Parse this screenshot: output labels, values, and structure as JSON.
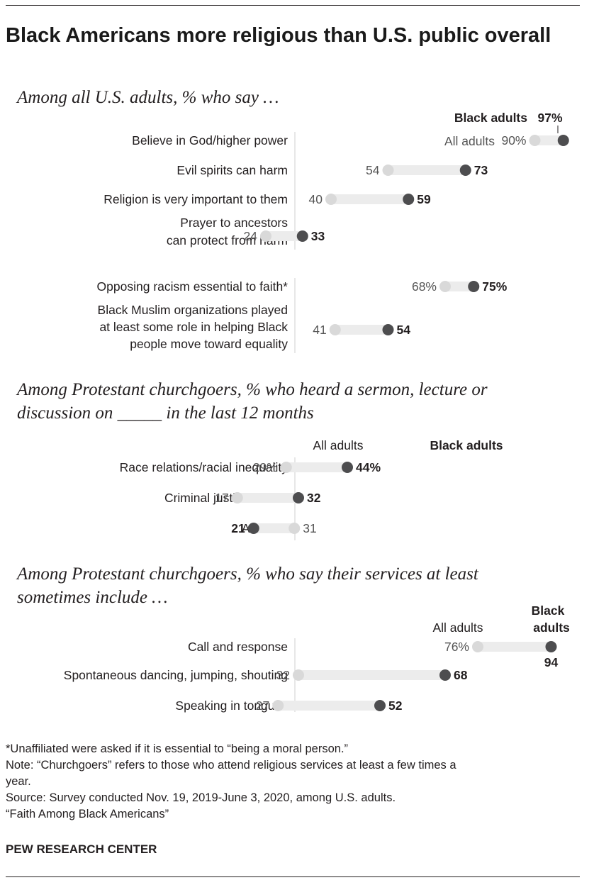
{
  "title": "Black Americans more religious than U.S. public overall",
  "colors": {
    "black_dot": "#4d4d4f",
    "all_dot": "#d9d9d9",
    "bar": "#ececec",
    "text": "#231f20",
    "muted": "#555555"
  },
  "footnotes": {
    "note1": "*Unaffiliated were asked if it is essential to “being a moral person.”",
    "note2a": "Note: “Churchgoers” refers to those who attend religious services at least a few times a",
    "note2b": "year.",
    "source": "Source: Survey conducted Nov. 19, 2019-June 3, 2020, among U.S. adults.",
    "report": "“Faith Among Black Americans”"
  },
  "brand": "PEW RESEARCH CENTER",
  "chart_data": [
    {
      "type": "dot",
      "subtitle": "Among all U.S. adults, % who say …",
      "legend": {
        "black": "Black adults",
        "all": "All adults"
      },
      "xlim": [
        0,
        100
      ],
      "rows": [
        {
          "label": [
            "Believe in God/higher power"
          ],
          "all": 90,
          "black": 97,
          "all_text": "90%",
          "black_text": "97%"
        },
        {
          "label": [
            "Evil spirits can harm"
          ],
          "all": 54,
          "black": 73,
          "all_text": "54",
          "black_text": "73"
        },
        {
          "label": [
            "Religion is very important to them"
          ],
          "all": 40,
          "black": 59,
          "all_text": "40",
          "black_text": "59"
        },
        {
          "label": [
            "Prayer to ancestors",
            "can protect from harm"
          ],
          "all": 24,
          "black": 33,
          "all_text": "24",
          "black_text": "33"
        },
        {
          "label": [
            "Opposing racism essential to faith*"
          ],
          "all": 68,
          "black": 75,
          "all_text": "68%",
          "black_text": "75%"
        },
        {
          "label": [
            "Black Muslim organizations played",
            "at least some role in helping Black",
            "people move toward equality"
          ],
          "all": 41,
          "black": 54,
          "all_text": "41",
          "black_text": "54"
        }
      ]
    },
    {
      "type": "dot",
      "subtitle": [
        "Among Protestant churchgoers, % who heard a sermon, lecture or",
        "discussion on _____ in the last 12 months"
      ],
      "legend": {
        "black": "Black adults",
        "all": "All adults"
      },
      "xlim": [
        0,
        100
      ],
      "rows": [
        {
          "label": [
            "Race relations/racial inequality"
          ],
          "all": 29,
          "black": 44,
          "all_text": "29%",
          "black_text": "44%"
        },
        {
          "label": [
            "Criminal justice reform"
          ],
          "all": 17,
          "black": 32,
          "all_text": "17",
          "black_text": "32"
        },
        {
          "label": [
            "Abortion"
          ],
          "all": 31,
          "black": 21,
          "all_text": "31",
          "black_text": "21"
        }
      ]
    },
    {
      "type": "dot",
      "subtitle": [
        "Among Protestant churchgoers, % who say their services at least",
        "sometimes include …"
      ],
      "legend": {
        "black": [
          "Black",
          "adults"
        ],
        "all": "All adults"
      },
      "xlim": [
        0,
        100
      ],
      "rows": [
        {
          "label": [
            "Call and response"
          ],
          "all": 76,
          "black": 94,
          "all_text": "76%",
          "black_text": "94"
        },
        {
          "label": [
            "Spontaneous dancing, jumping, shouting"
          ],
          "all": 32,
          "black": 68,
          "all_text": "32",
          "black_text": "68"
        },
        {
          "label": [
            "Speaking in tongues"
          ],
          "all": 27,
          "black": 52,
          "all_text": "27",
          "black_text": "52"
        }
      ]
    }
  ]
}
